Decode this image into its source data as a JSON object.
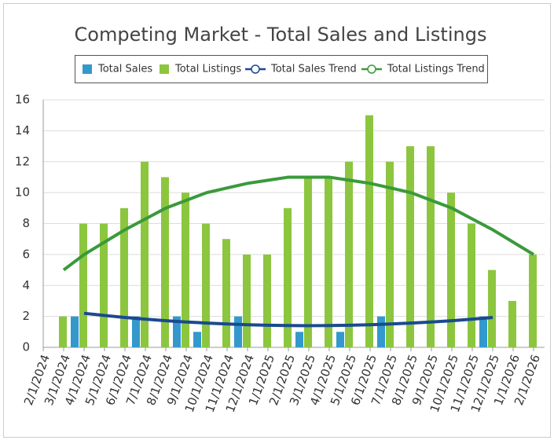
{
  "chart_data": {
    "type": "bar",
    "title": "Competing Market - Total Sales and Listings",
    "categories": [
      "2/1/2024",
      "3/1/2024",
      "4/1/2024",
      "5/1/2024",
      "6/1/2024",
      "7/1/2024",
      "8/1/2024",
      "9/1/2024",
      "10/1/2024",
      "11/1/2024",
      "12/1/2024",
      "1/1/2025",
      "2/1/2025",
      "3/1/2025",
      "4/1/2025",
      "5/1/2025",
      "6/1/2025",
      "7/1/2025",
      "8/1/2025",
      "9/1/2025",
      "10/1/2025",
      "11/1/2025",
      "12/1/2025",
      "1/1/2026",
      "2/1/2026"
    ],
    "series": [
      {
        "name": "Total Sales",
        "kind": "bar",
        "color": "#3399cc",
        "values": [
          null,
          0,
          2,
          0,
          0,
          2,
          0,
          2,
          1,
          0,
          2,
          0,
          0,
          1,
          0,
          1,
          0,
          2,
          0,
          0,
          0,
          0,
          2,
          0,
          0
        ]
      },
      {
        "name": "Total Listings",
        "kind": "bar",
        "color": "#8cc63f",
        "values": [
          null,
          2,
          8,
          8,
          9,
          12,
          11,
          10,
          8,
          7,
          6,
          6,
          9,
          11,
          11,
          12,
          15,
          12,
          13,
          13,
          10,
          8,
          5,
          3,
          6
        ]
      },
      {
        "name": "Total Sales Trend",
        "kind": "line",
        "color": "#1a4a8f",
        "values": [
          null,
          null,
          2.2,
          2.06,
          1.93,
          1.82,
          1.72,
          1.64,
          1.57,
          1.51,
          1.46,
          1.43,
          1.41,
          1.4,
          1.41,
          1.43,
          1.46,
          1.51,
          1.57,
          1.64,
          1.72,
          1.82,
          1.93,
          null,
          null
        ]
      },
      {
        "name": "Total Listings Trend",
        "kind": "line",
        "color": "#3a9a3a",
        "values": [
          null,
          5.0,
          6.0,
          6.8,
          7.6,
          8.3,
          9.0,
          9.5,
          10.0,
          10.3,
          10.6,
          10.8,
          11.0,
          11.0,
          11.0,
          10.8,
          10.6,
          10.3,
          10.0,
          9.5,
          9.0,
          8.3,
          7.6,
          6.8,
          6.0
        ]
      }
    ],
    "ylim": [
      0,
      16
    ],
    "yticks": [
      0,
      2,
      4,
      6,
      8,
      10,
      12,
      14,
      16
    ],
    "grid": true,
    "legend": "top"
  }
}
